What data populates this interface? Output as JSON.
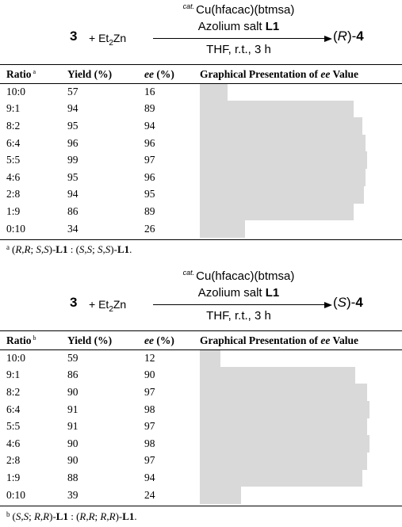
{
  "schemes": [
    {
      "substrate": "3",
      "plus": "+",
      "reagent_prefix": "Et",
      "reagent_sub": "2",
      "reagent_suffix": "Zn",
      "cat_prefix": "cat.",
      "catalyst": "Cu(hfacac)(btmsa)",
      "ligand_prefix": "Azolium salt ",
      "ligand": "L1",
      "conditions": "THF, r.t., 3 h",
      "product_config": "R",
      "product_number": "4"
    },
    {
      "substrate": "3",
      "plus": "+",
      "reagent_prefix": "Et",
      "reagent_sub": "2",
      "reagent_suffix": "Zn",
      "cat_prefix": "cat.",
      "catalyst": "Cu(hfacac)(btmsa)",
      "ligand_prefix": "Azolium salt ",
      "ligand": "L1",
      "conditions": "THF, r.t., 3 h",
      "product_config": "S",
      "product_number": "4"
    }
  ],
  "tables": [
    {
      "headers": {
        "ratio": "Ratio",
        "ratio_mark": "a",
        "yield": "Yield (%)",
        "ee_italic": "ee",
        "ee_rest": " (%)",
        "graph_prefix": "Graphical Presentation of ",
        "graph_italic": "ee",
        "graph_suffix": " Value"
      },
      "rows": [
        {
          "ratio": "10:0",
          "yield": "57",
          "ee": "16"
        },
        {
          "ratio": "9:1",
          "yield": "94",
          "ee": "89"
        },
        {
          "ratio": "8:2",
          "yield": "95",
          "ee": "94"
        },
        {
          "ratio": "6:4",
          "yield": "96",
          "ee": "96"
        },
        {
          "ratio": "5:5",
          "yield": "99",
          "ee": "97"
        },
        {
          "ratio": "4:6",
          "yield": "95",
          "ee": "96"
        },
        {
          "ratio": "2:8",
          "yield": "94",
          "ee": "95"
        },
        {
          "ratio": "1:9",
          "yield": "86",
          "ee": "89"
        },
        {
          "ratio": "0:10",
          "yield": "34",
          "ee": "26"
        }
      ],
      "footnote": {
        "mark": "a",
        "parts": [
          {
            "text": "(",
            "style": ""
          },
          {
            "text": "R,R",
            "style": "i"
          },
          {
            "text": "; ",
            "style": ""
          },
          {
            "text": "S,S",
            "style": "i"
          },
          {
            "text": ")-",
            "style": ""
          },
          {
            "text": "L1",
            "style": "b"
          },
          {
            "text": " : (",
            "style": ""
          },
          {
            "text": "S,S",
            "style": "i"
          },
          {
            "text": "; ",
            "style": ""
          },
          {
            "text": "S,S",
            "style": "i"
          },
          {
            "text": ")-",
            "style": ""
          },
          {
            "text": "L1",
            "style": "b"
          },
          {
            "text": ".",
            "style": ""
          }
        ]
      }
    },
    {
      "headers": {
        "ratio": "Ratio",
        "ratio_mark": "b",
        "yield": "Yield (%)",
        "ee_italic": "ee",
        "ee_rest": " (%)",
        "graph_prefix": "Graphical Presentation of ",
        "graph_italic": "ee",
        "graph_suffix": " Value"
      },
      "rows": [
        {
          "ratio": "10:0",
          "yield": "59",
          "ee": "12"
        },
        {
          "ratio": "9:1",
          "yield": "86",
          "ee": "90"
        },
        {
          "ratio": "8:2",
          "yield": "90",
          "ee": "97"
        },
        {
          "ratio": "6:4",
          "yield": "91",
          "ee": "98"
        },
        {
          "ratio": "5:5",
          "yield": "91",
          "ee": "97"
        },
        {
          "ratio": "4:6",
          "yield": "90",
          "ee": "98"
        },
        {
          "ratio": "2:8",
          "yield": "90",
          "ee": "97"
        },
        {
          "ratio": "1:9",
          "yield": "88",
          "ee": "94"
        },
        {
          "ratio": "0:10",
          "yield": "39",
          "ee": "24"
        }
      ],
      "footnote": {
        "mark": "b",
        "parts": [
          {
            "text": "(",
            "style": ""
          },
          {
            "text": "S,S",
            "style": "i"
          },
          {
            "text": "; ",
            "style": ""
          },
          {
            "text": "R,R",
            "style": "i"
          },
          {
            "text": ")-",
            "style": ""
          },
          {
            "text": "L1",
            "style": "b"
          },
          {
            "text": " : (",
            "style": ""
          },
          {
            "text": "R,R",
            "style": "i"
          },
          {
            "text": "; ",
            "style": ""
          },
          {
            "text": "R,R",
            "style": "i"
          },
          {
            "text": ")-",
            "style": ""
          },
          {
            "text": "L1",
            "style": "b"
          },
          {
            "text": ".",
            "style": ""
          }
        ]
      }
    }
  ],
  "colors": {
    "bar": "#d9d9d9",
    "text": "#000000"
  }
}
